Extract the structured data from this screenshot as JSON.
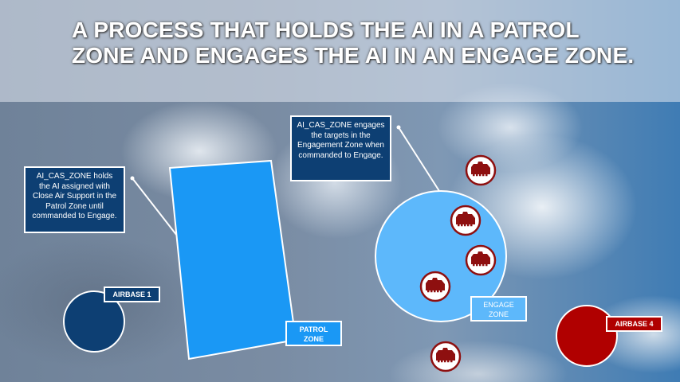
{
  "title": "A PROCESS THAT HOLDS THE AI IN A PATROL ZONE AND ENGAGES THE AI IN AN ENGAGE ZONE.",
  "callouts": {
    "patrol": "AI_CAS_ZONE holds the AI assigned with Close Air Support in the Patrol Zone until commanded to Engage.",
    "engage": "AI_CAS_ZONE engages the targets in the Engagement Zone when commanded to Engage."
  },
  "labels": {
    "airbase1": "AIRBASE 1",
    "patrol_zone": "PATROL ZONE",
    "engage_zone": "ENGAGE ZONE",
    "airbase4": "AIRBASE 4"
  },
  "colors": {
    "dark_blue": "#0d3f73",
    "patrol_blue": "#1a98f5",
    "engage_blue": "#5db8fb",
    "red": "#b00000"
  },
  "icons": [
    "tank-icon",
    "tank-icon",
    "tank-icon",
    "tank-icon",
    "tank-icon"
  ]
}
